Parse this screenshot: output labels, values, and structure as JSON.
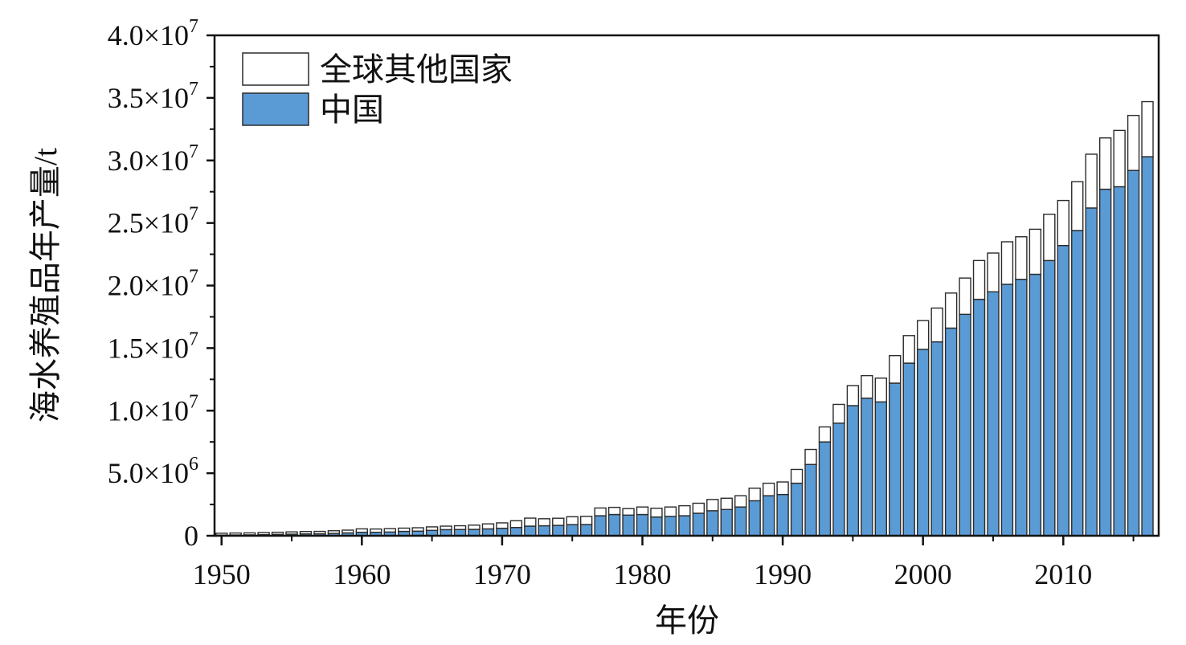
{
  "chart_data": {
    "type": "bar",
    "stacked": true,
    "title": "",
    "xlabel": "年份",
    "ylabel": "海水养殖品年产量/t",
    "xlim": [
      1949.5,
      2016.8
    ],
    "ylim": [
      0,
      40000000
    ],
    "x_ticks": [
      1950,
      1960,
      1970,
      1980,
      1990,
      2000,
      2010
    ],
    "x_tick_labels": [
      "1950",
      "1960",
      "1970",
      "1980",
      "1990",
      "2000",
      "2010"
    ],
    "y_ticks": [
      0,
      5000000,
      10000000,
      15000000,
      20000000,
      25000000,
      30000000,
      35000000,
      40000000
    ],
    "y_tick_labels": [
      {
        "mantissa": "0",
        "exponent": ""
      },
      {
        "mantissa": "5.0×10",
        "exponent": "6"
      },
      {
        "mantissa": "1.0×10",
        "exponent": "7"
      },
      {
        "mantissa": "1.5×10",
        "exponent": "7"
      },
      {
        "mantissa": "2.0×10",
        "exponent": "7"
      },
      {
        "mantissa": "2.5×10",
        "exponent": "7"
      },
      {
        "mantissa": "3.0×10",
        "exponent": "7"
      },
      {
        "mantissa": "3.5×10",
        "exponent": "7"
      },
      {
        "mantissa": "4.0×10",
        "exponent": "7"
      }
    ],
    "legend_position": "top-left",
    "categories": [
      1950,
      1951,
      1952,
      1953,
      1954,
      1955,
      1956,
      1957,
      1958,
      1959,
      1960,
      1961,
      1962,
      1963,
      1964,
      1965,
      1966,
      1967,
      1968,
      1969,
      1970,
      1971,
      1972,
      1973,
      1974,
      1975,
      1976,
      1977,
      1978,
      1979,
      1980,
      1981,
      1982,
      1983,
      1984,
      1985,
      1986,
      1987,
      1988,
      1989,
      1990,
      1991,
      1992,
      1993,
      1994,
      1995,
      1996,
      1997,
      1998,
      1999,
      2000,
      2001,
      2002,
      2003,
      2004,
      2005,
      2006,
      2007,
      2008,
      2009,
      2010,
      2011,
      2012,
      2013,
      2014,
      2015,
      2016
    ],
    "series": [
      {
        "name": "中国",
        "color": "#5b9bd5",
        "values": [
          50000,
          60000,
          70000,
          90000,
          110000,
          130000,
          150000,
          160000,
          190000,
          230000,
          280000,
          280000,
          300000,
          350000,
          370000,
          430000,
          490000,
          500000,
          510000,
          550000,
          600000,
          660000,
          770000,
          800000,
          830000,
          890000,
          900000,
          1600000,
          1700000,
          1650000,
          1700000,
          1500000,
          1550000,
          1600000,
          1800000,
          2000000,
          2100000,
          2300000,
          2800000,
          3200000,
          3300000,
          4200000,
          5700000,
          7500000,
          9000000,
          10400000,
          11000000,
          10700000,
          12200000,
          13800000,
          14900000,
          15500000,
          16600000,
          17700000,
          18900000,
          19500000,
          20100000,
          20500000,
          20900000,
          22000000,
          23200000,
          24400000,
          26200000,
          27700000,
          27900000,
          29200000,
          30300000
        ]
      },
      {
        "name": "全球其他国家",
        "color": "#ffffff",
        "values": [
          150000,
          160000,
          160000,
          170000,
          170000,
          180000,
          190000,
          190000,
          210000,
          220000,
          270000,
          260000,
          270000,
          260000,
          270000,
          280000,
          280000,
          300000,
          340000,
          400000,
          430000,
          540000,
          640000,
          560000,
          570000,
          630000,
          650000,
          620000,
          570000,
          520000,
          600000,
          700000,
          750000,
          800000,
          800000,
          900000,
          900000,
          900000,
          1000000,
          1000000,
          1000000,
          1100000,
          1200000,
          1200000,
          1500000,
          1600000,
          1800000,
          1900000,
          2200000,
          2200000,
          2300000,
          2700000,
          2800000,
          2900000,
          3100000,
          3100000,
          3400000,
          3400000,
          3600000,
          3700000,
          3600000,
          3900000,
          4300000,
          4100000,
          4500000,
          4400000,
          4400000
        ]
      }
    ]
  }
}
